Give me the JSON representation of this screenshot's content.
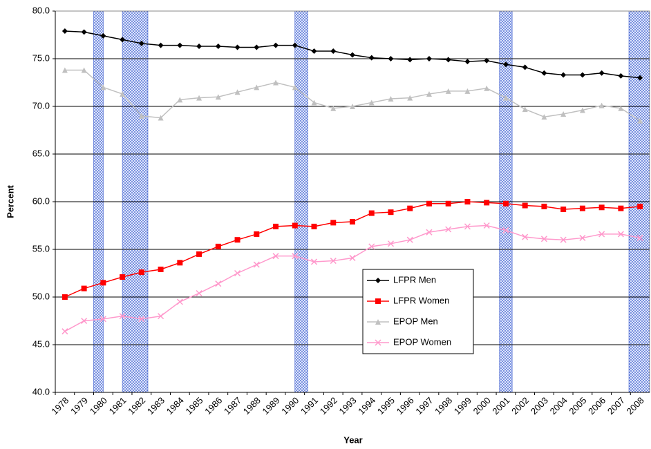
{
  "chart_data": {
    "type": "line",
    "x_label": "Year",
    "y_label": "Percent",
    "categories": [
      "1978",
      "1979",
      "1980",
      "1981",
      "1982",
      "1983",
      "1984",
      "1985",
      "1986",
      "1987",
      "1988",
      "1989",
      "1990",
      "1991",
      "1992",
      "1993",
      "1994",
      "1995",
      "1996",
      "1997",
      "1998",
      "1999",
      "2000",
      "2001",
      "2002",
      "2003",
      "2004",
      "2005",
      "2006",
      "2007",
      "2008"
    ],
    "xlim": [
      1978,
      2009
    ],
    "ylim": [
      40,
      80
    ],
    "yticks": [
      {
        "value": 40,
        "label": "40.0"
      },
      {
        "value": 45,
        "label": "45.0"
      },
      {
        "value": 50,
        "label": "50.0"
      },
      {
        "value": 55,
        "label": "55.0"
      },
      {
        "value": 60,
        "label": "60.0"
      },
      {
        "value": 65,
        "label": "65.0"
      },
      {
        "value": 70,
        "label": "70.0"
      },
      {
        "value": 75,
        "label": "75.0"
      },
      {
        "value": 80,
        "label": "80.0"
      }
    ],
    "grid": true,
    "shaded_periods": [
      [
        1980.0,
        1980.5
      ],
      [
        1981.5,
        1982.83
      ],
      [
        1990.5,
        1991.17
      ],
      [
        2001.17,
        2001.83
      ],
      [
        2007.92,
        2009
      ]
    ],
    "shade_color": "#3355cc",
    "series": [
      {
        "name": "LFPR Men",
        "color": "#000000",
        "marker": "diamond",
        "values": [
          77.9,
          77.8,
          77.4,
          77.0,
          76.6,
          76.4,
          76.4,
          76.3,
          76.3,
          76.2,
          76.2,
          76.4,
          76.4,
          75.8,
          75.8,
          75.4,
          75.1,
          75.0,
          74.9,
          75.0,
          74.9,
          74.7,
          74.8,
          74.4,
          74.1,
          73.5,
          73.3,
          73.3,
          73.5,
          73.2,
          73.0
        ]
      },
      {
        "name": "LFPR Women",
        "color": "#ff0000",
        "marker": "square",
        "values": [
          50.0,
          50.9,
          51.5,
          52.1,
          52.6,
          52.9,
          53.6,
          54.5,
          55.3,
          56.0,
          56.6,
          57.4,
          57.5,
          57.4,
          57.8,
          57.9,
          58.8,
          58.9,
          59.3,
          59.8,
          59.8,
          60.0,
          59.9,
          59.8,
          59.6,
          59.5,
          59.2,
          59.3,
          59.4,
          59.3,
          59.5
        ]
      },
      {
        "name": "EPOP Men",
        "color": "#c0c0c0",
        "marker": "triangle",
        "values": [
          73.8,
          73.8,
          72.0,
          71.3,
          69.0,
          68.8,
          70.7,
          70.9,
          71.0,
          71.5,
          72.0,
          72.5,
          72.0,
          70.4,
          69.8,
          70.0,
          70.4,
          70.8,
          70.9,
          71.3,
          71.6,
          71.6,
          71.9,
          70.9,
          69.7,
          68.9,
          69.2,
          69.6,
          70.1,
          69.8,
          68.5
        ]
      },
      {
        "name": "EPOP Women",
        "color": "#ff99cc",
        "marker": "x",
        "values": [
          46.4,
          47.5,
          47.7,
          48.0,
          47.7,
          48.0,
          49.5,
          50.4,
          51.4,
          52.5,
          53.4,
          54.3,
          54.3,
          53.7,
          53.8,
          54.1,
          55.3,
          55.6,
          56.0,
          56.8,
          57.1,
          57.4,
          57.5,
          57.0,
          56.3,
          56.1,
          56.0,
          56.2,
          56.6,
          56.6,
          56.2
        ]
      }
    ]
  }
}
